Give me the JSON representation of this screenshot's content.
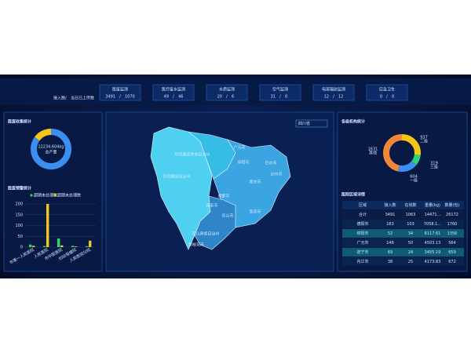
{
  "header": {
    "legend": {
      "connected": "接入数",
      "separator": "/",
      "uploaded": "当日已上传数"
    },
    "tabs": [
      {
        "label": "医废监测",
        "connected": "3491",
        "uploaded": "1070"
      },
      {
        "label": "医疗废水监测",
        "connected": "49",
        "uploaded": "46"
      },
      {
        "label": "水质监测",
        "connected": "20",
        "uploaded": "6"
      },
      {
        "label": "空气监测",
        "connected": "31",
        "uploaded": "0"
      },
      {
        "label": "电离辐射监测",
        "connected": "12",
        "uploaded": "12"
      },
      {
        "label": "应急卫生",
        "connected": "0",
        "uploaded": "0"
      }
    ]
  },
  "left": {
    "collection": {
      "title": "医废收集统计",
      "total": "12234.604kg",
      "caption": "总产量",
      "values": [
        85,
        15
      ],
      "colors": [
        "#3b8ff0",
        "#f5c518"
      ]
    },
    "warning": {
      "title": "医废预警统计",
      "chart": {
        "type": "bar",
        "categories": [
          "市第一人民医院",
          "人民医院",
          "市中医医院",
          "妇幼保健院",
          "人民医院分院"
        ],
        "series": [
          {
            "name": "超期未处理数",
            "color": "#2ed573",
            "values": [
              12,
              5,
              40,
              6,
              4
            ]
          },
          {
            "name": "超期未处理数",
            "color": "#f5c518",
            "values": [
              6,
              200,
              8,
              3,
              30
            ]
          }
        ],
        "ylim": [
          0,
          200
        ],
        "yticks": [
          0,
          50,
          100,
          150,
          200
        ]
      }
    }
  },
  "map": {
    "select": "四川省",
    "regions": [
      {
        "label": "阿坝藏族羌族自治州"
      },
      {
        "label": "甘孜藏族自治州"
      },
      {
        "label": "凉山彝族自治州"
      },
      {
        "label": "成都市"
      },
      {
        "label": "绵阳市"
      },
      {
        "label": "广元市"
      },
      {
        "label": "巴中市"
      },
      {
        "label": "达州市"
      },
      {
        "label": "南充市"
      },
      {
        "label": "雅安市"
      },
      {
        "label": "乐山市"
      },
      {
        "label": "宜宾市"
      },
      {
        "label": "攀枝花市"
      }
    ]
  },
  "right": {
    "institutions": {
      "title": "各级机构统计",
      "values": [
        937,
        319,
        604,
        1631
      ],
      "labels": [
        "二级",
        "三级",
        "一级",
        "其他"
      ],
      "colors": [
        "#f5c518",
        "#2ed573",
        "#3b8ff0",
        "#f0883a"
      ]
    },
    "table": {
      "title": "医院区域详情",
      "columns": [
        "区域",
        "接入数",
        "在线数",
        "重量(kg)",
        "数量(包)"
      ],
      "rows": [
        [
          "合计",
          "3491",
          "1063",
          "14471...",
          "26172"
        ],
        [
          "德阳市",
          "183",
          "103",
          "7058.1...",
          "1760"
        ],
        [
          "绵阳市",
          "52",
          "34",
          "8117.61",
          "1356"
        ],
        [
          "广元市",
          "146",
          "50",
          "4503.13",
          "564"
        ],
        [
          "遂宁市",
          "69",
          "24",
          "3455.19",
          "659"
        ],
        [
          "内江市",
          "38",
          "25",
          "4173.83",
          "672"
        ]
      ]
    }
  }
}
